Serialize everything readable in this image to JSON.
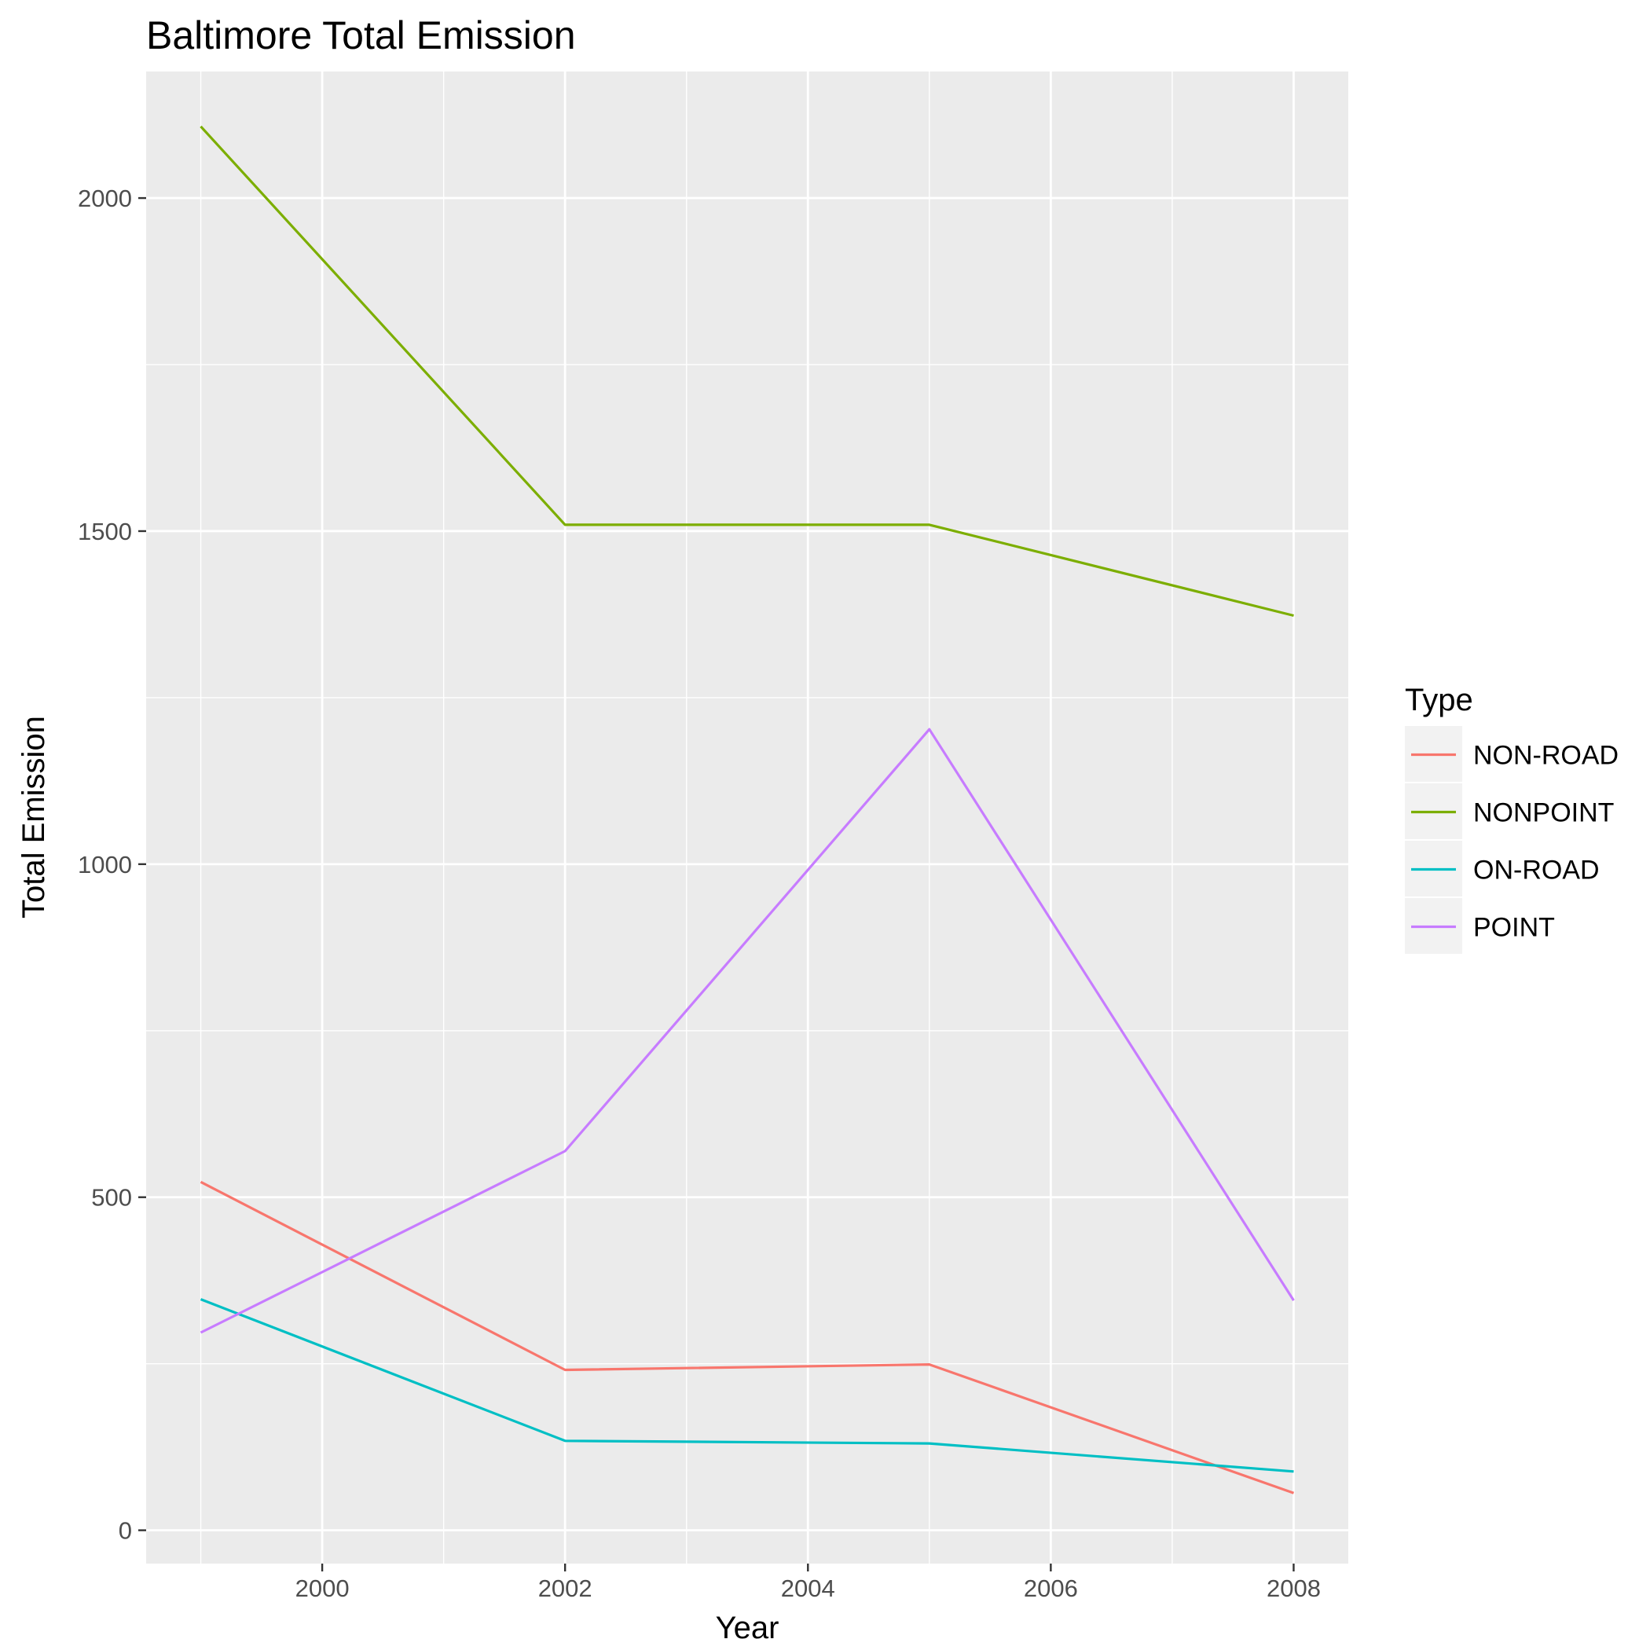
{
  "chart_data": {
    "type": "line",
    "title": "Baltimore Total Emission",
    "xlabel": "Year",
    "ylabel": "Total Emission",
    "x": [
      1999,
      2002,
      2005,
      2008
    ],
    "xlim": [
      1998.55,
      2008.45
    ],
    "ylim": [
      -50,
      2190
    ],
    "xticks": [
      2000,
      2002,
      2004,
      2006,
      2008
    ],
    "yticks": [
      0,
      500,
      1000,
      1500,
      2000
    ],
    "grid": true,
    "legend": {
      "title": "Type",
      "position": "right"
    },
    "series": [
      {
        "name": "NON-ROAD",
        "color": "#F8766D",
        "values": [
          522.9,
          240.8,
          248.9,
          55.8
        ]
      },
      {
        "name": "NONPOINT",
        "color": "#7CAE00",
        "values": [
          2107.6,
          1509.5,
          1509.5,
          1373.2
        ]
      },
      {
        "name": "ON-ROAD",
        "color": "#00BFC4",
        "values": [
          346.8,
          134.3,
          130.4,
          88.3
        ]
      },
      {
        "name": "POINT",
        "color": "#C77CFF",
        "values": [
          296.8,
          569.3,
          1202.5,
          344.98
        ]
      }
    ]
  }
}
